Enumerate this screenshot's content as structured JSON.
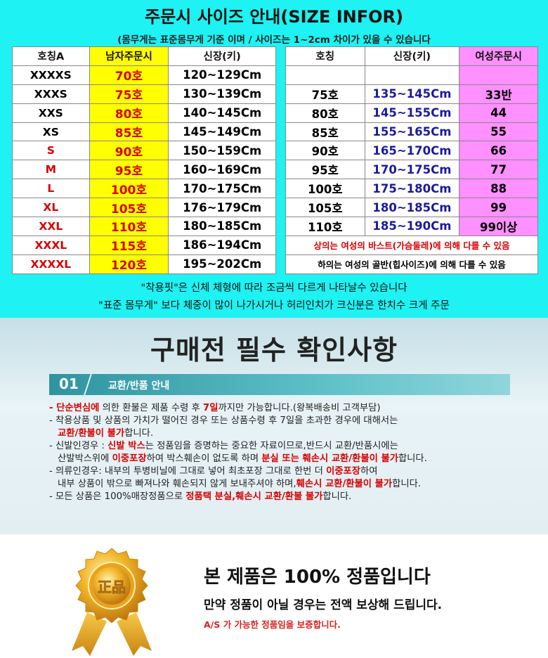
{
  "size_guide": {
    "title": "주문시 사이즈 안내(SIZE INFOR)",
    "subtitle": "(몸무게는 표준몸무게 기준 이며 / 사이즈는 1~2cm 차이가 있을 수 있습니다",
    "men_headers": [
      "호칭A",
      "남자주문시",
      "신장(키)"
    ],
    "men_rows": [
      [
        "XXXXS",
        "70호",
        "120~129Cm"
      ],
      [
        "XXXS",
        "75호",
        "130~139Cm"
      ],
      [
        "XXS",
        "80호",
        "140~145Cm"
      ],
      [
        "XS",
        "85호",
        "145~149Cm"
      ],
      [
        "S",
        "90호",
        "150~159Cm"
      ],
      [
        "M",
        "95호",
        "160~169Cm"
      ],
      [
        "L",
        "100호",
        "170~175Cm"
      ],
      [
        "XL",
        "105호",
        "176~179Cm"
      ],
      [
        "XXL",
        "110호",
        "180~185Cm"
      ],
      [
        "XXXL",
        "115호",
        "186~194Cm"
      ],
      [
        "XXXXL",
        "120호",
        "195~202Cm"
      ]
    ],
    "women_headers": [
      "호칭",
      "신장(키)",
      "여성주문시"
    ],
    "women_rows": [
      [
        "",
        "",
        ""
      ],
      [
        "75호",
        "135~145Cm",
        "33반"
      ],
      [
        "80호",
        "145~155Cm",
        "44"
      ],
      [
        "85호",
        "155~165Cm",
        "55"
      ],
      [
        "90호",
        "165~170Cm",
        "66"
      ],
      [
        "95호",
        "170~175Cm",
        "77"
      ],
      [
        "100호",
        "175~180Cm",
        "88"
      ],
      [
        "105호",
        "180~185Cm",
        "99"
      ],
      [
        "110호",
        "185~190Cm",
        "99이상"
      ]
    ],
    "women_note_top": "상의는 여성의 바스트(가슴둘레)에 의해 다를 수 있음",
    "women_note_bottom": "하의는 여성의 골반(힙사이즈)에 의해 다를 수 있음",
    "note1": "\"착용핏\"은 신체 체형에 따라 조금씩 다르게 나타날수 있습니다",
    "note2": "\"표준 몸무게\" 보다 체중이 많이 나가시거나 허리인치가 크신분은 한치수 크게 주문"
  },
  "checklist": {
    "title": "구매전 필수 확인사항",
    "section_num": "01",
    "section_label": "교환/반품 안내",
    "l1a": "- 단순변심에",
    "l1b": " 의한 환불은 제품 수령 후 ",
    "l1c": "7일",
    "l1d": "까지만 가능합니다.(왕복배송비 고객부담)",
    "l2": "- 착용상품 및 상품의 가치가 떨어진 경우 또는 상품수령 후 7일을 초과한 경우에    대해서는",
    "l3a": "교환/환불이 불가",
    "l3b": "합니다.",
    "l4a": "- 신발인경우 : ",
    "l4b": "신발 박스",
    "l4c": "는 정품임을 증명하는 중요한 자료이므로,반드시 교환/반품시에는",
    "l5a": "산발박스위에 ",
    "l5b": "이중포장",
    "l5c": "하여 박스훼손이 없도록 하며 ",
    "l5d": "분실 또는 훼손시 교환/환불이 불가",
    "l5e": "합니다.",
    "l6a": "- 의류인경우: 내부의 투병비닐에 그대로 넣어 최초포장 그대로  한번 더 ",
    "l6b": "이중포장",
    "l6c": "하여",
    "l7a": "내부 상품이 밖으로 빠져나와 훼손되지 않게 보내주셔야 하며,",
    "l7b": "훼손시 교환/환불이 불가",
    "l7c": "합니다.",
    "l8a": "- 모든 상품은 100%매장정품으로 ",
    "l8b": "정품택 분실,훼손시 교환/환불 불가",
    "l8c": "합니다."
  },
  "guarantee": {
    "badge_text": "正品",
    "title": "본 제품은 100% 정품입니다",
    "line2": "만약 정품이 아닐 경우는 전액 보상해 드립니다.",
    "line3": "A/S 가 가능한 정품임을 보증합니다."
  },
  "colors": {
    "cyan_bg": "#1ef2f2",
    "yellow": "#ffff00",
    "pink": "#ff90ff",
    "red": "#d80000",
    "navy": "#1a1aa0",
    "teal_bar": "#2f94a0"
  }
}
